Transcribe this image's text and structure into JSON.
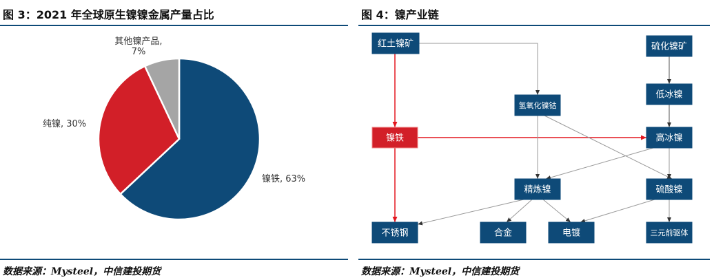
{
  "chart_data": {
    "type": "pie",
    "title": "图 3：2021 年全球原生镍镍金属产量占比",
    "values": [
      63,
      30,
      7
    ],
    "value_labels": [
      "镍铁, 63%",
      "纯镍, 30%",
      "其他镍产品, 7%"
    ],
    "colors": [
      "#0e4a78",
      "#d21f28",
      "#a5a5a5"
    ]
  },
  "chart_source": "数据来源：Mysteel，中信建投期货",
  "diagram": {
    "title": "图 4：镍产业链",
    "nodes": [
      {
        "label": "红土镍矿"
      },
      {
        "label": "硫化镍矿"
      },
      {
        "label": "氢氧化镍钴"
      },
      {
        "label": "低冰镍"
      },
      {
        "label": "镍铁"
      },
      {
        "label": "高冰镍"
      },
      {
        "label": "精炼镍"
      },
      {
        "label": "硫酸镍"
      },
      {
        "label": "不锈钢"
      },
      {
        "label": "合金"
      },
      {
        "label": "电镀"
      },
      {
        "label": "三元前驱体"
      }
    ],
    "source": "数据来源：Mysteel，中信建投期货"
  }
}
